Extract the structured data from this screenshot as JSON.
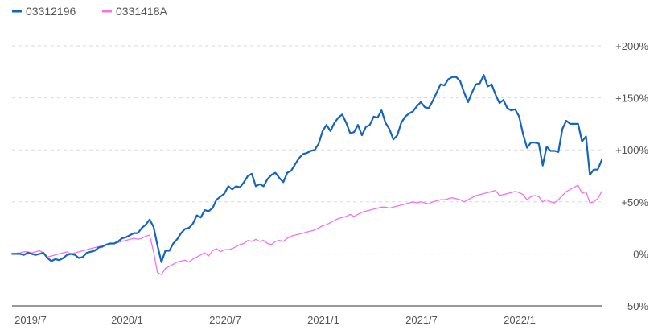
{
  "chart_data": {
    "type": "line",
    "title": "",
    "xlabel": "",
    "ylabel": "",
    "ylim": [
      -50,
      200
    ],
    "y_ticks": [
      "+200%",
      "+150%",
      "+100%",
      "+50%",
      "0%",
      "-50%"
    ],
    "y_tick_values": [
      200,
      150,
      100,
      50,
      0,
      -50
    ],
    "x_ticks": [
      "2019/7",
      "2020/1",
      "2020/7",
      "2021/1",
      "2021/7",
      "2022/1"
    ],
    "grid": true,
    "legend_position": "top-left",
    "series": [
      {
        "name": "03312196",
        "color": "#1565c0",
        "points": [
          [
            0,
            0
          ],
          [
            2,
            0
          ],
          [
            3,
            -1
          ],
          [
            4,
            1
          ],
          [
            5,
            0
          ],
          [
            6,
            -1
          ],
          [
            7,
            0
          ],
          [
            8,
            1
          ],
          [
            9,
            -4
          ],
          [
            10,
            -7
          ],
          [
            11,
            -5
          ],
          [
            12,
            -6
          ],
          [
            13,
            -4
          ],
          [
            14,
            -1
          ],
          [
            15,
            0
          ],
          [
            16,
            -1
          ],
          [
            17,
            -4
          ],
          [
            18,
            -3
          ],
          [
            19,
            1
          ],
          [
            20,
            2
          ],
          [
            21,
            3
          ],
          [
            22,
            6
          ],
          [
            23,
            7
          ],
          [
            24,
            9
          ],
          [
            25,
            10
          ],
          [
            26,
            10
          ],
          [
            27,
            12
          ],
          [
            28,
            15
          ],
          [
            29,
            16
          ],
          [
            30,
            18
          ],
          [
            31,
            20
          ],
          [
            32,
            20
          ],
          [
            33,
            25
          ],
          [
            34,
            28
          ],
          [
            35,
            33
          ],
          [
            36,
            26
          ],
          [
            37,
            8
          ],
          [
            38,
            -8
          ],
          [
            39,
            3
          ],
          [
            40,
            3
          ],
          [
            41,
            10
          ],
          [
            42,
            14
          ],
          [
            43,
            20
          ],
          [
            44,
            24
          ],
          [
            45,
            25
          ],
          [
            46,
            29
          ],
          [
            47,
            37
          ],
          [
            48,
            35
          ],
          [
            49,
            42
          ],
          [
            50,
            41
          ],
          [
            51,
            44
          ],
          [
            52,
            52
          ],
          [
            53,
            55
          ],
          [
            54,
            58
          ],
          [
            55,
            65
          ],
          [
            56,
            62
          ],
          [
            57,
            65
          ],
          [
            58,
            64
          ],
          [
            59,
            69
          ],
          [
            60,
            75
          ],
          [
            61,
            77
          ],
          [
            62,
            65
          ],
          [
            63,
            67
          ],
          [
            64,
            65
          ],
          [
            65,
            72
          ],
          [
            66,
            76
          ],
          [
            67,
            78
          ],
          [
            68,
            73
          ],
          [
            69,
            69
          ],
          [
            70,
            78
          ],
          [
            71,
            80
          ],
          [
            72,
            86
          ],
          [
            73,
            92
          ],
          [
            74,
            96
          ],
          [
            75,
            97
          ],
          [
            76,
            99
          ],
          [
            77,
            100
          ],
          [
            78,
            106
          ],
          [
            79,
            118
          ],
          [
            80,
            124
          ],
          [
            81,
            118
          ],
          [
            82,
            126
          ],
          [
            83,
            131
          ],
          [
            84,
            134
          ],
          [
            85,
            126
          ],
          [
            86,
            116
          ],
          [
            87,
            117
          ],
          [
            88,
            124
          ],
          [
            89,
            114
          ],
          [
            90,
            122
          ],
          [
            91,
            124
          ],
          [
            92,
            132
          ],
          [
            93,
            131
          ],
          [
            94,
            138
          ],
          [
            95,
            126
          ],
          [
            96,
            120
          ],
          [
            97,
            110
          ],
          [
            98,
            114
          ],
          [
            99,
            126
          ],
          [
            100,
            132
          ],
          [
            101,
            135
          ],
          [
            102,
            137
          ],
          [
            103,
            142
          ],
          [
            104,
            146
          ],
          [
            105,
            141
          ],
          [
            106,
            140
          ],
          [
            107,
            147
          ],
          [
            108,
            155
          ],
          [
            109,
            163
          ],
          [
            110,
            162
          ],
          [
            111,
            168
          ],
          [
            112,
            170
          ],
          [
            113,
            170
          ],
          [
            114,
            166
          ],
          [
            115,
            155
          ],
          [
            116,
            146
          ],
          [
            117,
            155
          ],
          [
            118,
            163
          ],
          [
            119,
            164
          ],
          [
            120,
            172
          ],
          [
            121,
            161
          ],
          [
            122,
            163
          ],
          [
            123,
            153
          ],
          [
            124,
            145
          ],
          [
            125,
            148
          ],
          [
            126,
            140
          ],
          [
            127,
            138
          ],
          [
            128,
            139
          ],
          [
            129,
            132
          ],
          [
            130,
            115
          ],
          [
            131,
            102
          ],
          [
            132,
            107
          ],
          [
            133,
            107
          ],
          [
            134,
            106
          ],
          [
            135,
            85
          ],
          [
            136,
            103
          ],
          [
            137,
            99
          ],
          [
            138,
            99
          ],
          [
            139,
            98
          ],
          [
            140,
            120
          ],
          [
            141,
            128
          ],
          [
            142,
            125
          ],
          [
            143,
            125
          ],
          [
            144,
            125
          ],
          [
            145,
            108
          ],
          [
            146,
            113
          ],
          [
            147,
            76
          ],
          [
            148,
            81
          ],
          [
            149,
            81
          ],
          [
            150,
            90
          ]
        ]
      },
      {
        "name": "0331418A",
        "color": "#ef72f0",
        "points": [
          [
            0,
            0
          ],
          [
            2,
            1
          ],
          [
            3,
            2
          ],
          [
            4,
            2
          ],
          [
            5,
            1
          ],
          [
            6,
            2
          ],
          [
            7,
            3
          ],
          [
            8,
            1
          ],
          [
            9,
            -3
          ],
          [
            10,
            -2
          ],
          [
            11,
            -1
          ],
          [
            12,
            0
          ],
          [
            13,
            1
          ],
          [
            14,
            2
          ],
          [
            15,
            0
          ],
          [
            16,
            1
          ],
          [
            17,
            2
          ],
          [
            18,
            3
          ],
          [
            19,
            4
          ],
          [
            20,
            5
          ],
          [
            21,
            6
          ],
          [
            22,
            7
          ],
          [
            23,
            8
          ],
          [
            24,
            9
          ],
          [
            25,
            10
          ],
          [
            26,
            10
          ],
          [
            27,
            11
          ],
          [
            28,
            12
          ],
          [
            29,
            13
          ],
          [
            30,
            14
          ],
          [
            31,
            15
          ],
          [
            32,
            14
          ],
          [
            33,
            15
          ],
          [
            34,
            17
          ],
          [
            35,
            18
          ],
          [
            36,
            2
          ],
          [
            37,
            -18
          ],
          [
            38,
            -20
          ],
          [
            39,
            -14
          ],
          [
            40,
            -12
          ],
          [
            41,
            -10
          ],
          [
            42,
            -8
          ],
          [
            43,
            -7
          ],
          [
            44,
            -6
          ],
          [
            45,
            -8
          ],
          [
            46,
            -5
          ],
          [
            47,
            -3
          ],
          [
            48,
            -1
          ],
          [
            49,
            1
          ],
          [
            50,
            -2
          ],
          [
            51,
            3
          ],
          [
            52,
            5
          ],
          [
            53,
            2
          ],
          [
            54,
            4
          ],
          [
            55,
            4
          ],
          [
            56,
            5
          ],
          [
            57,
            7
          ],
          [
            58,
            9
          ],
          [
            59,
            10
          ],
          [
            60,
            13
          ],
          [
            61,
            12
          ],
          [
            62,
            14
          ],
          [
            63,
            12
          ],
          [
            64,
            13
          ],
          [
            65,
            10
          ],
          [
            66,
            9
          ],
          [
            67,
            12
          ],
          [
            68,
            13
          ],
          [
            69,
            12
          ],
          [
            70,
            15
          ],
          [
            71,
            17
          ],
          [
            72,
            18
          ],
          [
            73,
            19
          ],
          [
            74,
            20
          ],
          [
            75,
            21
          ],
          [
            76,
            22
          ],
          [
            77,
            23
          ],
          [
            78,
            25
          ],
          [
            79,
            27
          ],
          [
            80,
            28
          ],
          [
            81,
            30
          ],
          [
            82,
            32
          ],
          [
            83,
            34
          ],
          [
            84,
            35
          ],
          [
            85,
            36
          ],
          [
            86,
            38
          ],
          [
            87,
            36
          ],
          [
            88,
            38
          ],
          [
            89,
            40
          ],
          [
            90,
            41
          ],
          [
            91,
            42
          ],
          [
            92,
            43
          ],
          [
            93,
            44
          ],
          [
            94,
            45
          ],
          [
            95,
            45
          ],
          [
            96,
            44
          ],
          [
            97,
            45
          ],
          [
            98,
            46
          ],
          [
            99,
            47
          ],
          [
            100,
            48
          ],
          [
            101,
            49
          ],
          [
            102,
            50
          ],
          [
            103,
            49
          ],
          [
            104,
            50
          ],
          [
            105,
            49
          ],
          [
            106,
            48
          ],
          [
            107,
            50
          ],
          [
            108,
            51
          ],
          [
            109,
            52
          ],
          [
            110,
            52
          ],
          [
            111,
            53
          ],
          [
            112,
            54
          ],
          [
            113,
            53
          ],
          [
            114,
            52
          ],
          [
            115,
            50
          ],
          [
            116,
            52
          ],
          [
            117,
            54
          ],
          [
            118,
            56
          ],
          [
            119,
            57
          ],
          [
            120,
            58
          ],
          [
            121,
            59
          ],
          [
            122,
            60
          ],
          [
            123,
            61
          ],
          [
            124,
            56
          ],
          [
            125,
            57
          ],
          [
            126,
            58
          ],
          [
            127,
            59
          ],
          [
            128,
            60
          ],
          [
            129,
            59
          ],
          [
            130,
            57
          ],
          [
            131,
            52
          ],
          [
            132,
            55
          ],
          [
            133,
            56
          ],
          [
            134,
            55
          ],
          [
            135,
            50
          ],
          [
            136,
            52
          ],
          [
            137,
            50
          ],
          [
            138,
            49
          ],
          [
            139,
            52
          ],
          [
            140,
            56
          ],
          [
            141,
            60
          ],
          [
            142,
            62
          ],
          [
            143,
            64
          ],
          [
            144,
            66
          ],
          [
            145,
            58
          ],
          [
            146,
            60
          ],
          [
            147,
            49
          ],
          [
            148,
            50
          ],
          [
            149,
            53
          ],
          [
            150,
            60
          ]
        ]
      }
    ]
  }
}
